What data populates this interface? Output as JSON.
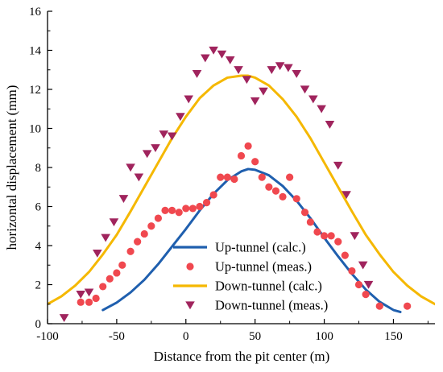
{
  "chart_data": {
    "type": "line+scatter",
    "xlabel": "Distance from the pit center (m)",
    "ylabel": "horizontal displacement (mm)",
    "xlim": [
      -100,
      180
    ],
    "ylim": [
      0,
      16
    ],
    "xticks": [
      -100,
      -50,
      0,
      50,
      100,
      150
    ],
    "yticks": [
      0,
      2,
      4,
      6,
      8,
      10,
      12,
      14,
      16
    ],
    "grid": false,
    "legend_position": "bottom-right",
    "series": [
      {
        "name": "Up-tunnel (calc.)",
        "kind": "line",
        "color": "#1f5fae",
        "x": [
          -60,
          -50,
          -40,
          -30,
          -20,
          -10,
          0,
          10,
          20,
          30,
          40,
          45,
          50,
          60,
          70,
          80,
          90,
          100,
          110,
          120,
          130,
          140,
          150,
          155
        ],
        "y": [
          0.7,
          1.08,
          1.6,
          2.25,
          3.05,
          3.95,
          4.85,
          5.8,
          6.65,
          7.35,
          7.8,
          7.92,
          7.88,
          7.6,
          7.05,
          6.3,
          5.4,
          4.4,
          3.45,
          2.55,
          1.75,
          1.12,
          0.7,
          0.6
        ]
      },
      {
        "name": "Up-tunnel (meas.)",
        "kind": "scatter",
        "marker": "circle",
        "color": "#f0484f",
        "x": [
          -76,
          -70,
          -65,
          -60,
          -55,
          -50,
          -46,
          -40,
          -35,
          -30,
          -25,
          -20,
          -15,
          -10,
          -5,
          0,
          5,
          10,
          15,
          20,
          25,
          30,
          35,
          40,
          45,
          50,
          55,
          60,
          65,
          70,
          75,
          80,
          86,
          90,
          95,
          100,
          105,
          110,
          115,
          120,
          125,
          130,
          140,
          160
        ],
        "y": [
          1.1,
          1.1,
          1.3,
          1.9,
          2.3,
          2.6,
          3.0,
          3.7,
          4.2,
          4.6,
          5.0,
          5.4,
          5.8,
          5.8,
          5.7,
          5.9,
          5.9,
          6.0,
          6.2,
          6.6,
          7.5,
          7.5,
          7.4,
          8.6,
          9.1,
          8.3,
          7.5,
          7.0,
          6.8,
          6.5,
          7.5,
          6.4,
          5.7,
          5.2,
          4.7,
          4.5,
          4.5,
          4.2,
          3.5,
          2.7,
          2.0,
          1.5,
          0.9,
          0.9
        ]
      },
      {
        "name": "Down-tunnel (calc.)",
        "kind": "line",
        "color": "#f5b800",
        "x": [
          -100,
          -90,
          -80,
          -70,
          -60,
          -50,
          -40,
          -30,
          -20,
          -10,
          0,
          10,
          20,
          30,
          40,
          45,
          50,
          60,
          70,
          80,
          90,
          100,
          110,
          120,
          130,
          140,
          150,
          160,
          170,
          180
        ],
        "y": [
          1.0,
          1.4,
          1.95,
          2.65,
          3.55,
          4.55,
          5.75,
          7.0,
          8.25,
          9.5,
          10.6,
          11.55,
          12.2,
          12.6,
          12.7,
          12.7,
          12.6,
          12.2,
          11.5,
          10.6,
          9.5,
          8.25,
          7.0,
          5.75,
          4.55,
          3.55,
          2.65,
          1.95,
          1.4,
          1.0
        ]
      },
      {
        "name": "Down-tunnel (meas.)",
        "kind": "scatter",
        "marker": "triangle-down",
        "color": "#a0245d",
        "x": [
          -88,
          -76,
          -70,
          -64,
          -58,
          -52,
          -45,
          -40,
          -34,
          -28,
          -22,
          -16,
          -10,
          -4,
          2,
          8,
          14,
          20,
          26,
          32,
          38,
          44,
          50,
          56,
          62,
          68,
          74,
          80,
          86,
          92,
          98,
          104,
          110,
          116,
          122,
          128,
          132
        ],
        "y": [
          0.3,
          1.5,
          1.6,
          3.6,
          4.4,
          5.2,
          6.4,
          8.0,
          7.5,
          8.7,
          9.0,
          9.7,
          9.6,
          10.6,
          11.5,
          12.8,
          13.6,
          14.0,
          13.8,
          13.5,
          13.0,
          12.5,
          11.4,
          11.9,
          13.0,
          13.2,
          13.1,
          12.8,
          12.0,
          11.5,
          11.0,
          10.2,
          8.1,
          6.6,
          4.5,
          3.0,
          2.0
        ]
      }
    ]
  }
}
